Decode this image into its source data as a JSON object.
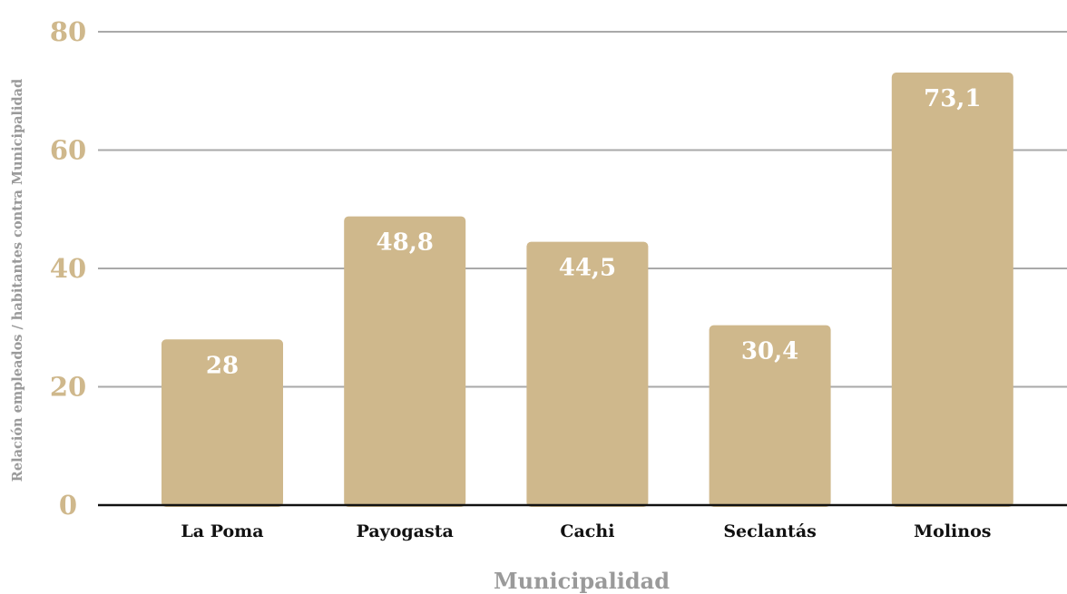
{
  "chart_data": {
    "type": "bar",
    "title": "",
    "xlabel": "Municipalidad",
    "ylabel": "Relación empleados / habitantes contra Municipalidad",
    "categories": [
      "La Poma",
      "Payogasta",
      "Cachi",
      "Seclantás",
      "Molinos"
    ],
    "values": [
      28,
      48.8,
      44.5,
      30.4,
      73.1
    ],
    "data_labels": [
      "28",
      "48,8",
      "44,5",
      "30,4",
      "73,1"
    ],
    "yticks": [
      "0",
      "20",
      "40",
      "60",
      "80"
    ],
    "ylim": [
      0,
      80
    ],
    "grid": true,
    "bar_color": "#cfb88c",
    "tick_color": "#cfb88c",
    "gridline_color": "#a9a9a9"
  }
}
